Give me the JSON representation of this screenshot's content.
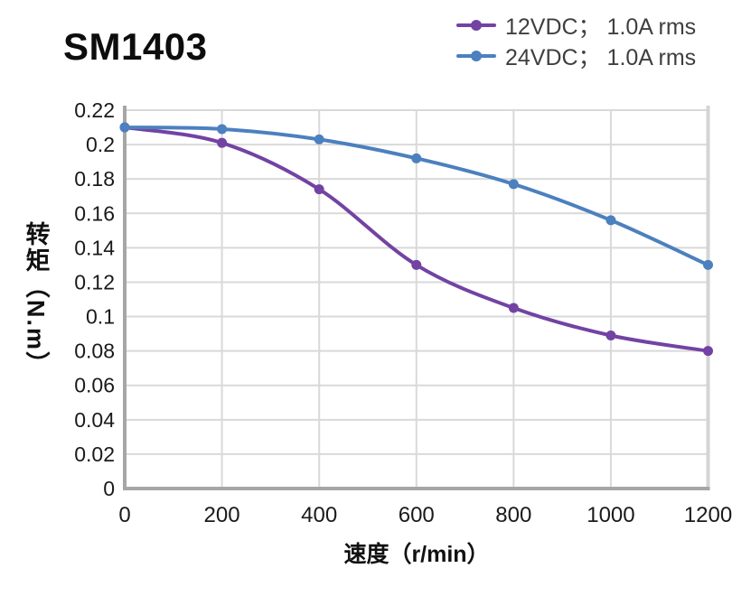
{
  "title": "SM1403",
  "legend": {
    "position": "top-right",
    "items": [
      {
        "label": "12VDC； 1.0A rms",
        "color": "#7243A3"
      },
      {
        "label": "24VDC； 1.0A rms",
        "color": "#4C80BE"
      }
    ]
  },
  "chart_data": {
    "type": "line",
    "title": "SM1403",
    "xlabel": "速度（r/min）",
    "ylabel": "转矩（N.m）",
    "x": [
      0,
      200,
      400,
      600,
      800,
      1000,
      1200
    ],
    "series": [
      {
        "name": "12VDC； 1.0A rms",
        "color": "#7243A3",
        "values": [
          0.21,
          0.201,
          0.174,
          0.13,
          0.105,
          0.089,
          0.08
        ]
      },
      {
        "name": "24VDC； 1.0A rms",
        "color": "#4C80BE",
        "values": [
          0.21,
          0.209,
          0.203,
          0.192,
          0.177,
          0.156,
          0.13
        ]
      }
    ],
    "xlim": [
      0,
      1200
    ],
    "ylim": [
      0,
      0.22
    ],
    "x_ticks": [
      0,
      200,
      400,
      600,
      800,
      1000,
      1200
    ],
    "x_tick_labels": [
      "0",
      "200",
      "400",
      "600",
      "800",
      "1000",
      "1200"
    ],
    "y_ticks": [
      0,
      0.02,
      0.04,
      0.06,
      0.08,
      0.1,
      0.12,
      0.14,
      0.16,
      0.18,
      0.2,
      0.22
    ],
    "y_tick_labels": [
      "0",
      "0.02",
      "0.04",
      "0.06",
      "0.08",
      "0.1",
      "0.12",
      "0.14",
      "0.16",
      "0.18",
      "0.2",
      "0.22"
    ],
    "grid": true,
    "legend_position": "top-right",
    "style": {
      "background": "#FFFFFF",
      "grid_color": "#D9D9D9",
      "axis_color": "#A6A6A6",
      "right_border_color": "#D4D4D4",
      "tick_text_color": "#1A1A1A",
      "legend_text_color": "#3F3F3F",
      "line_width": 4,
      "marker": "circle",
      "marker_radius": 5.5
    }
  }
}
